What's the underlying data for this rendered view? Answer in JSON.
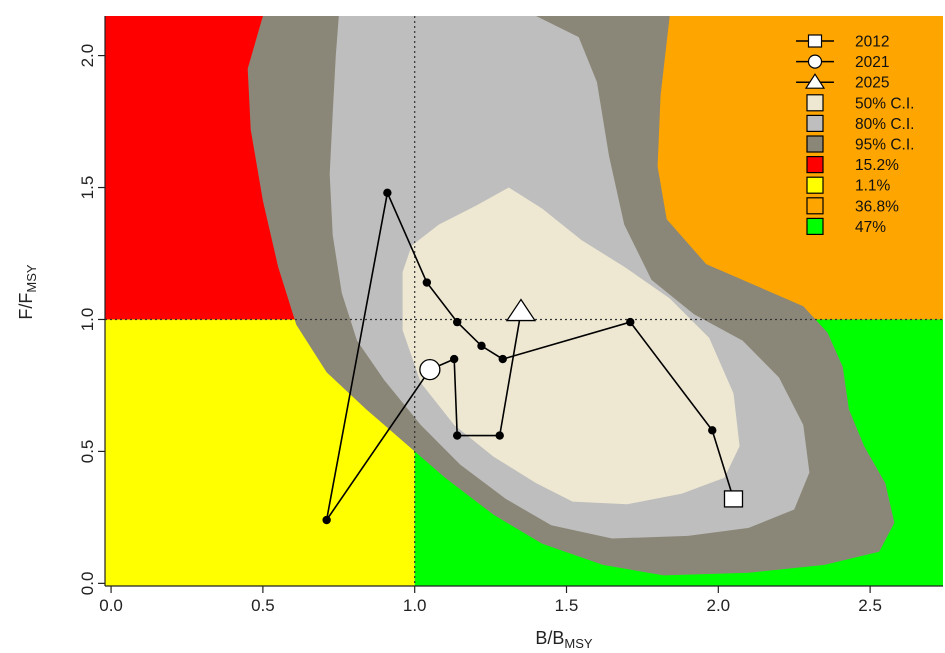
{
  "chart_data": {
    "type": "scatter",
    "xlabel": {
      "main": "B/B",
      "sub": "MSY"
    },
    "ylabel": {
      "main": "F/F",
      "sub": "MSY"
    },
    "xlim": [
      -0.02,
      2.74
    ],
    "ylim": [
      -0.01,
      2.15
    ],
    "x_ticks": [
      "0.0",
      "0.5",
      "1.0",
      "1.5",
      "2.0",
      "2.5"
    ],
    "x_tick_values": [
      0,
      0.5,
      1.0,
      1.5,
      2.0,
      2.5
    ],
    "y_ticks": [
      "0.0",
      "0.5",
      "1.0",
      "1.5",
      "2.0"
    ],
    "y_tick_values": [
      0,
      0.5,
      1.0,
      1.5,
      2.0
    ],
    "reference_lines": {
      "x": 1.0,
      "y": 1.0,
      "style": "dotted"
    },
    "quadrants": [
      {
        "name": "overfished-overfishing",
        "color": "#ff0000",
        "x": [
          -0.02,
          1.0
        ],
        "y": [
          1.0,
          2.15
        ]
      },
      {
        "name": "overfished",
        "color": "#ffff00",
        "x": [
          -0.02,
          1.0
        ],
        "y": [
          -0.01,
          1.0
        ]
      },
      {
        "name": "overfishing",
        "color": "#ffa500",
        "x": [
          1.0,
          2.74
        ],
        "y": [
          1.0,
          2.15
        ]
      },
      {
        "name": "healthy",
        "color": "#00ff00",
        "x": [
          1.0,
          2.74
        ],
        "y": [
          -0.01,
          1.0
        ]
      }
    ],
    "confidence_regions": [
      {
        "level": "95%",
        "color": "#8b8778",
        "polygon": [
          [
            0.5,
            2.15
          ],
          [
            0.45,
            1.95
          ],
          [
            0.46,
            1.72
          ],
          [
            0.5,
            1.45
          ],
          [
            0.55,
            1.2
          ],
          [
            0.61,
            0.98
          ],
          [
            0.71,
            0.8
          ],
          [
            0.84,
            0.66
          ],
          [
            0.97,
            0.53
          ],
          [
            1.1,
            0.4
          ],
          [
            1.26,
            0.26
          ],
          [
            1.42,
            0.15
          ],
          [
            1.62,
            0.07
          ],
          [
            1.82,
            0.03
          ],
          [
            2.1,
            0.04
          ],
          [
            2.35,
            0.07
          ],
          [
            2.53,
            0.12
          ],
          [
            2.58,
            0.23
          ],
          [
            2.55,
            0.38
          ],
          [
            2.48,
            0.52
          ],
          [
            2.43,
            0.66
          ],
          [
            2.41,
            0.82
          ],
          [
            2.36,
            0.95
          ],
          [
            2.28,
            1.05
          ],
          [
            2.14,
            1.12
          ],
          [
            1.96,
            1.21
          ],
          [
            1.83,
            1.38
          ],
          [
            1.8,
            1.58
          ],
          [
            1.81,
            1.85
          ],
          [
            1.84,
            2.15
          ]
        ]
      },
      {
        "level": "80%",
        "color": "#bebebe",
        "polygon": [
          [
            0.75,
            2.15
          ],
          [
            0.74,
            2.0
          ],
          [
            0.73,
            1.78
          ],
          [
            0.72,
            1.55
          ],
          [
            0.73,
            1.32
          ],
          [
            0.76,
            1.1
          ],
          [
            0.81,
            0.92
          ],
          [
            0.9,
            0.77
          ],
          [
            1.02,
            0.6
          ],
          [
            1.15,
            0.45
          ],
          [
            1.3,
            0.32
          ],
          [
            1.45,
            0.22
          ],
          [
            1.65,
            0.17
          ],
          [
            1.9,
            0.18
          ],
          [
            2.1,
            0.21
          ],
          [
            2.25,
            0.28
          ],
          [
            2.3,
            0.42
          ],
          [
            2.28,
            0.6
          ],
          [
            2.2,
            0.78
          ],
          [
            2.08,
            0.92
          ],
          [
            1.92,
            1.02
          ],
          [
            1.78,
            1.15
          ],
          [
            1.69,
            1.36
          ],
          [
            1.64,
            1.62
          ],
          [
            1.6,
            1.9
          ],
          [
            1.54,
            2.07
          ],
          [
            1.4,
            2.15
          ]
        ]
      },
      {
        "level": "50%",
        "color": "#eee8d2",
        "polygon": [
          [
            0.96,
            1.18
          ],
          [
            0.99,
            1.28
          ],
          [
            1.08,
            1.36
          ],
          [
            1.2,
            1.43
          ],
          [
            1.31,
            1.5
          ],
          [
            1.42,
            1.42
          ],
          [
            1.55,
            1.3
          ],
          [
            1.69,
            1.2
          ],
          [
            1.84,
            1.08
          ],
          [
            1.97,
            0.93
          ],
          [
            2.05,
            0.72
          ],
          [
            2.07,
            0.52
          ],
          [
            2.02,
            0.4
          ],
          [
            1.88,
            0.34
          ],
          [
            1.7,
            0.3
          ],
          [
            1.52,
            0.31
          ],
          [
            1.4,
            0.38
          ],
          [
            1.26,
            0.48
          ],
          [
            1.13,
            0.6
          ],
          [
            1.02,
            0.76
          ],
          [
            0.96,
            0.96
          ]
        ]
      }
    ],
    "trajectory": {
      "x": [
        2.05,
        1.98,
        1.71,
        1.29,
        1.22,
        1.14,
        1.04,
        0.91,
        0.71,
        1.05,
        1.13,
        1.14,
        1.28,
        1.35
      ],
      "y": [
        0.32,
        0.58,
        0.99,
        0.85,
        0.9,
        0.99,
        1.14,
        1.48,
        0.24,
        0.81,
        0.85,
        0.56,
        0.56,
        1.03
      ],
      "labelled_points": {
        "start": 0,
        "marker_2021": 9,
        "end": 13
      }
    },
    "legend": {
      "position": "top-right",
      "items": [
        {
          "label": "2012",
          "symbol": "line-square",
          "color": "#ffffff"
        },
        {
          "label": "2021",
          "symbol": "line-circle",
          "color": "#ffffff"
        },
        {
          "label": "2025",
          "symbol": "line-triangle",
          "color": "#ffffff"
        },
        {
          "label": "50% C.I.",
          "symbol": "box",
          "color": "#eee8d2"
        },
        {
          "label": "80% C.I.",
          "symbol": "box",
          "color": "#bebebe"
        },
        {
          "label": "95% C.I.",
          "symbol": "box",
          "color": "#8b8778"
        },
        {
          "label": "15.2%",
          "symbol": "box",
          "color": "#ff0000"
        },
        {
          "label": "1.1%",
          "symbol": "box",
          "color": "#ffff00"
        },
        {
          "label": "36.8%",
          "symbol": "box",
          "color": "#ffa500"
        },
        {
          "label": "47%",
          "symbol": "box",
          "color": "#00ff00"
        }
      ]
    }
  }
}
